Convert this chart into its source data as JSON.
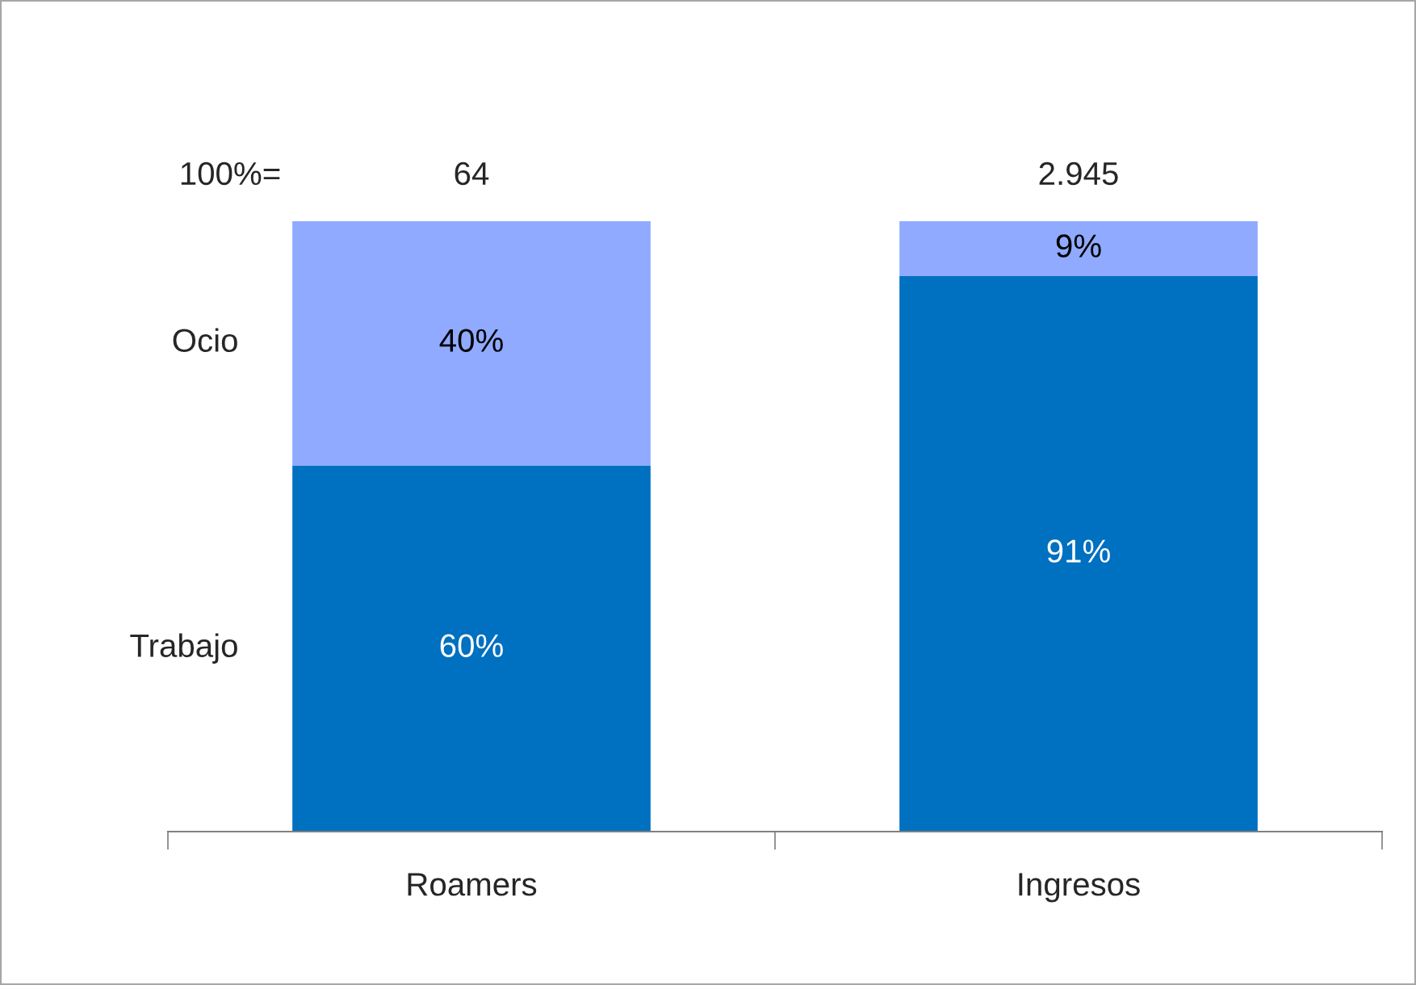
{
  "chart_data": {
    "type": "bar",
    "stacked": true,
    "categories": [
      "Roamers",
      "Ingresos"
    ],
    "series": [
      {
        "name": "Trabajo",
        "color": "#0070c0",
        "values": [
          60,
          91
        ],
        "value_labels": [
          "60%",
          "91%"
        ]
      },
      {
        "name": "Ocio",
        "color": "#8faaff",
        "values": [
          40,
          9
        ],
        "value_labels": [
          "40%",
          "9%"
        ]
      }
    ],
    "annotations": [
      "100%=",
      {
        "text": "64",
        "x": "Roamers",
        "y": 100
      },
      {
        "text": "2.945",
        "x": "Ingresos",
        "y": 100
      }
    ],
    "grid": false,
    "legend": false
  }
}
